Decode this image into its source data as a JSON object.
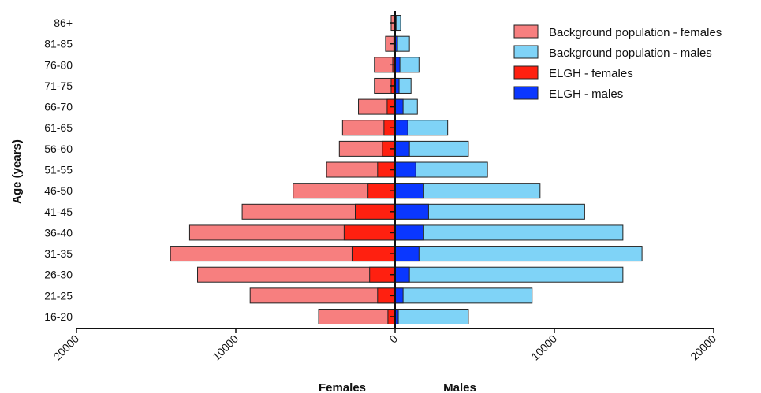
{
  "chart_data": {
    "type": "bar",
    "orientation": "horizontal",
    "subtype": "population-pyramid",
    "categories": [
      "16-20",
      "21-25",
      "26-30",
      "31-35",
      "36-40",
      "41-45",
      "46-50",
      "51-55",
      "56-60",
      "61-65",
      "66-70",
      "71-75",
      "76-80",
      "81-85",
      "86+"
    ],
    "series": [
      {
        "name": "Background population - females",
        "side": "left",
        "color": "#f77f7f",
        "values": [
          4800,
          9100,
          12400,
          14100,
          12900,
          9600,
          6400,
          4300,
          3500,
          3300,
          2300,
          1300,
          1300,
          600,
          250
        ]
      },
      {
        "name": "Background population - males",
        "side": "right",
        "color": "#7fd3f7",
        "values": [
          4600,
          8600,
          14300,
          15500,
          14300,
          11900,
          9100,
          5800,
          4600,
          3300,
          1400,
          1000,
          1500,
          900,
          350
        ]
      },
      {
        "name": "ELGH - females",
        "side": "left",
        "color": "#ff2010",
        "values": [
          450,
          1100,
          1600,
          2700,
          3200,
          2500,
          1700,
          1100,
          800,
          700,
          500,
          250,
          150,
          80,
          40
        ]
      },
      {
        "name": "ELGH - males",
        "side": "right",
        "color": "#0a37ff",
        "values": [
          200,
          500,
          900,
          1500,
          1800,
          2100,
          1800,
          1300,
          900,
          800,
          500,
          250,
          300,
          150,
          60
        ]
      }
    ],
    "x_axis": {
      "ticks": [
        "20000",
        "10000",
        "0",
        "10000",
        "20000"
      ],
      "range": [
        -20000,
        20000
      ],
      "label_left": "Females",
      "label_right": "Males"
    },
    "y_axis": {
      "label": "Age (years)"
    },
    "legend_position": "top-right",
    "grid": false
  }
}
